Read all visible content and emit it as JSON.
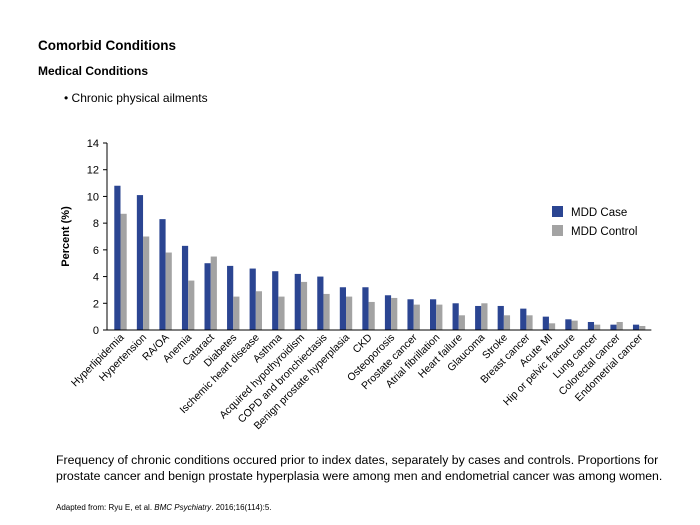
{
  "header": {
    "title": "Comorbid Conditions",
    "subtitle": "Medical Conditions",
    "bullet": "• Chronic physical ailments"
  },
  "caption": "Frequency of chronic conditions occured prior to index dates, separately by cases and controls. Proportions for prostate cancer and benign prostate hyperplasia were among men and endometrial cancer was among women.",
  "source": {
    "prefix": "Adapted from: Ryu E, et al. ",
    "journal": "BMC Psychiatry",
    "suffix": ". 2016;16(114):5."
  },
  "colors": {
    "case": "#2b4592",
    "control": "#a3a3a3"
  },
  "chart_data": {
    "type": "bar",
    "title": "",
    "xlabel": "",
    "ylabel": "Percent (%)",
    "ylim": [
      0,
      14
    ],
    "yticks": [
      0,
      2,
      4,
      6,
      8,
      10,
      12,
      14
    ],
    "grid": false,
    "legend": "right",
    "categories": [
      "Hyperlipidemia",
      "Hypertension",
      "RA/OA",
      "Anemia",
      "Cataract",
      "Diabetes",
      "Ischemic heart disease",
      "Asthma",
      "Acquired hypothyroidism",
      "COPD and bronchiectasis",
      "Benign prostate hyperplasia",
      "CKD",
      "Osteoporosis",
      "Prostate cancer",
      "Atrial fibrillation",
      "Heart failure",
      "Glaucoma",
      "Stroke",
      "Breast cancer",
      "Acute MI",
      "Hip or pelvic fracture",
      "Lung cancer",
      "Colorectal cancer",
      "Endometrial cancer"
    ],
    "series": [
      {
        "name": "MDD Case",
        "color": "#2b4592",
        "values": [
          10.8,
          10.1,
          8.3,
          6.3,
          5.0,
          4.8,
          4.6,
          4.4,
          4.2,
          4.0,
          3.2,
          3.2,
          2.6,
          2.3,
          2.3,
          2.0,
          1.8,
          1.8,
          1.6,
          1.0,
          0.8,
          0.6,
          0.4,
          0.4
        ]
      },
      {
        "name": "MDD Control",
        "color": "#a3a3a3",
        "values": [
          8.7,
          7.0,
          5.8,
          3.7,
          5.5,
          2.5,
          2.9,
          2.5,
          3.6,
          2.7,
          2.5,
          2.1,
          2.4,
          1.9,
          1.9,
          1.1,
          2.0,
          1.1,
          1.1,
          0.5,
          0.7,
          0.4,
          0.6,
          0.3
        ]
      }
    ]
  }
}
